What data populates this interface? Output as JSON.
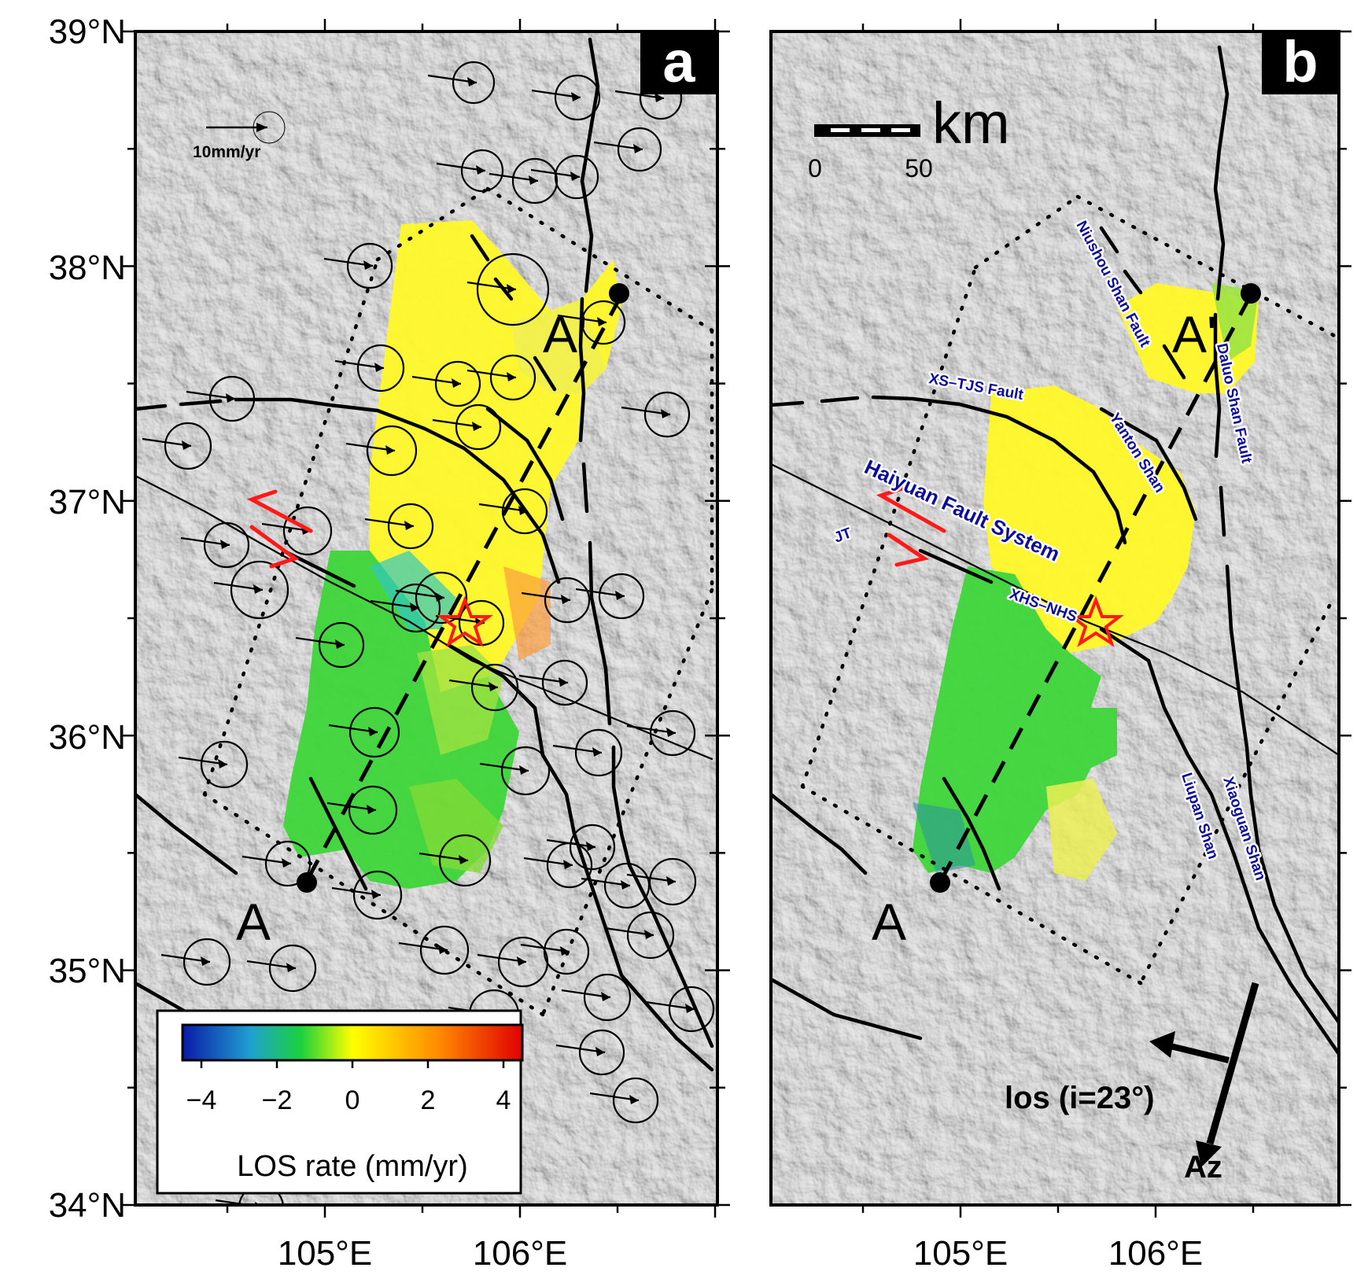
{
  "figure": {
    "panel_a": {
      "label": "a",
      "velocity_scale": "10mm/yr",
      "point_A": "A",
      "point_A_prime": "A'",
      "colorbar": {
        "ticks": [
          "−4",
          "−2",
          "0",
          "2",
          "4"
        ],
        "label": "LOS rate (mm/yr)",
        "range": [
          -4.5,
          4.5
        ],
        "colors": [
          "#0a1aa8",
          "#1fa0d0",
          "#1cd23c",
          "#ffff00",
          "#ff8c00",
          "#e10000"
        ]
      }
    },
    "panel_b": {
      "label": "b",
      "scale_unit": "km",
      "scale_ticks": [
        "0",
        "50"
      ],
      "point_A": "A",
      "point_A_prime": "A'",
      "fault_labels": {
        "niushou": "Niushou Shan Fault",
        "xstjs": "XS–TJS Fault",
        "yanton": "Yanton Shan",
        "luoshan": "Daluo Shan Fault",
        "haiyuan": "Haiyuan Fault System",
        "jt": "JT",
        "xhsnhs": "XHS–NHS",
        "liupan": "Liupan Shan",
        "xiaoguan": "Xiaoguan Shan"
      },
      "los_label": "los (i=23°)",
      "az_label": "Az"
    },
    "latitude_labels": [
      "39°N",
      "38°N",
      "37°N",
      "36°N",
      "35°N",
      "34°N"
    ],
    "longitude_labels": [
      "105°E",
      "106°E"
    ],
    "colors": {
      "fault": "#000000",
      "slip_arrow": "#ff1a1a",
      "epicenter_star": "#ff1a1a",
      "label_text": "#0b0b9c",
      "terrain": "#cfcfcf"
    }
  }
}
